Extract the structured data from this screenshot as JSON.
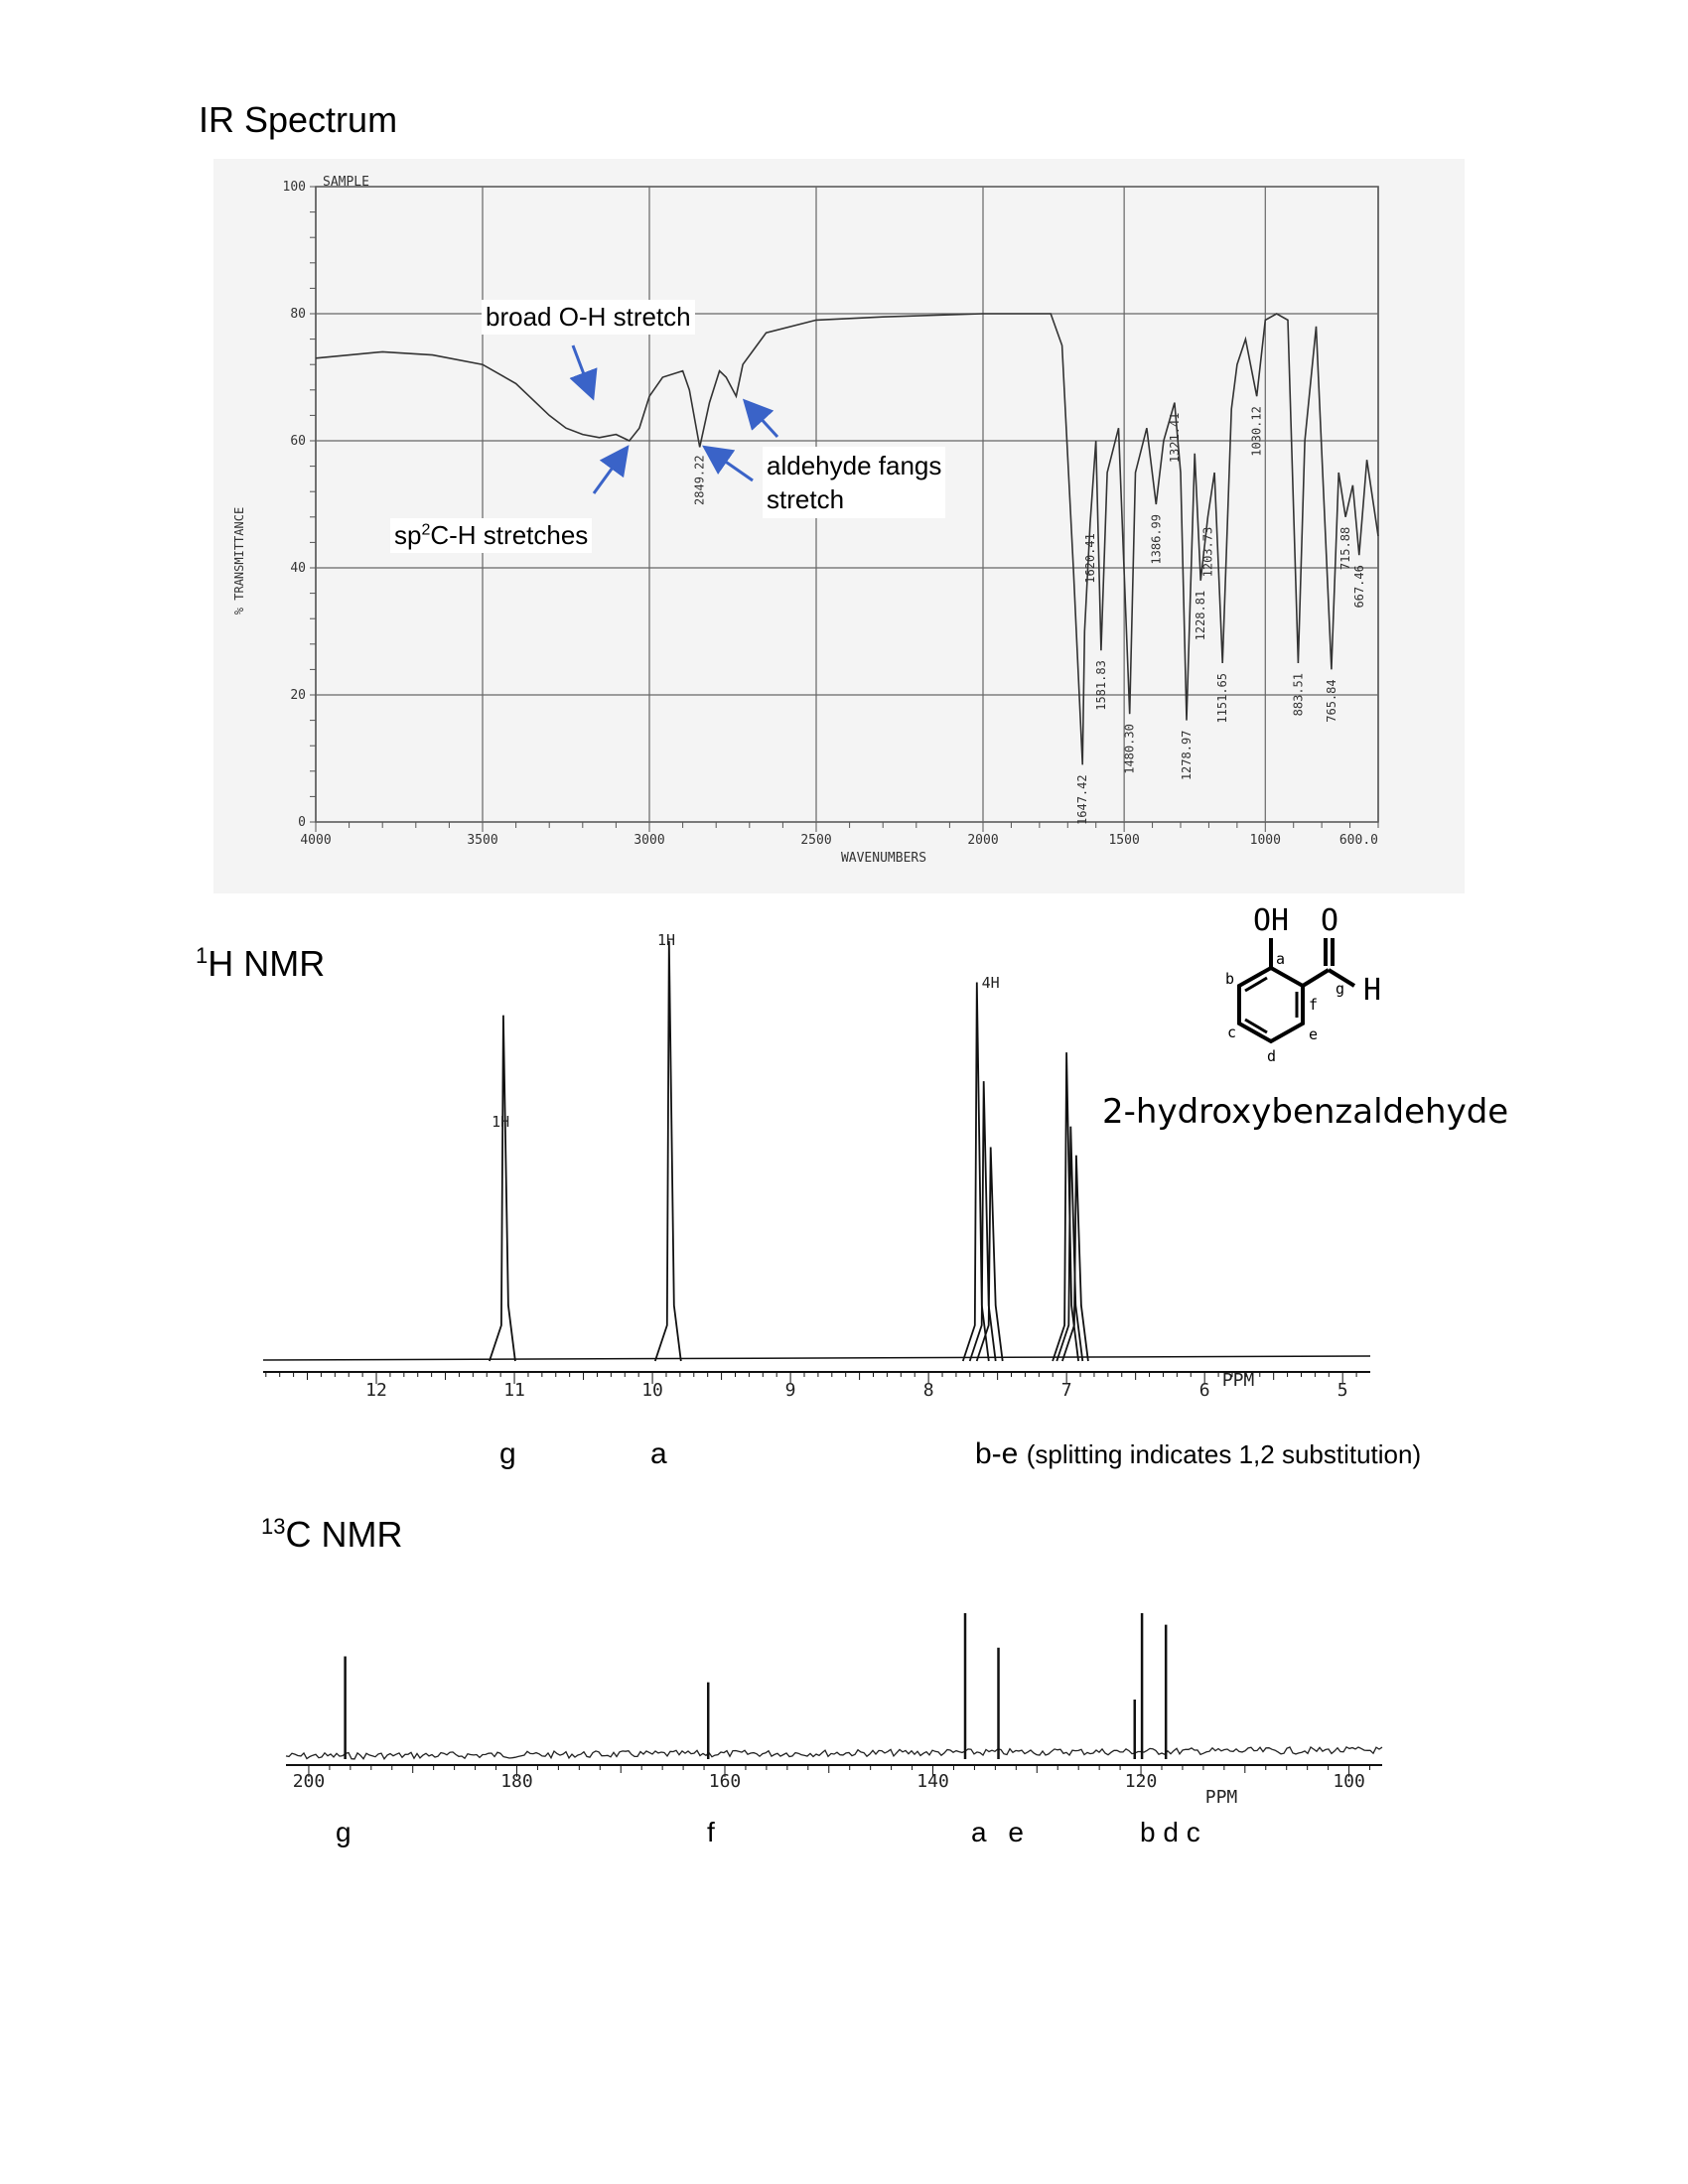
{
  "colors": {
    "annotation_arrow": "#3a63c8",
    "trace": "#333333",
    "grid": "#555555",
    "scan_bg": "#f4f4f4"
  },
  "headings": {
    "ir": "IR Spectrum",
    "h_nmr_sup": "1",
    "h_nmr": "H NMR",
    "c_nmr_sup": "13",
    "c_nmr": "C NMR"
  },
  "compound": {
    "name": "2-hydroxybenzaldehyde",
    "oh": "OH",
    "o": "O",
    "h": "H",
    "atom_labels": [
      "a",
      "b",
      "c",
      "d",
      "e",
      "f",
      "g"
    ]
  },
  "chart_data": [
    {
      "type": "line",
      "name": "ir",
      "sample_label": "SAMPLE",
      "xlabel": "WAVENUMBERS",
      "ylabel": "% TRANSMITTANCE",
      "xlim": [
        4000,
        600
      ],
      "ylim": [
        0,
        100
      ],
      "x_ticks": [
        "4000",
        "3500",
        "3000",
        "2500",
        "2000",
        "1500",
        "1000",
        "600.0"
      ],
      "y_ticks": [
        "100",
        "80",
        "60",
        "40",
        "20",
        "0"
      ],
      "grid": true,
      "trace": [
        [
          4000,
          73
        ],
        [
          3800,
          74
        ],
        [
          3650,
          73.5
        ],
        [
          3500,
          72
        ],
        [
          3400,
          69
        ],
        [
          3300,
          64
        ],
        [
          3250,
          62
        ],
        [
          3200,
          61
        ],
        [
          3150,
          60.5
        ],
        [
          3100,
          61
        ],
        [
          3060,
          60
        ],
        [
          3030,
          62
        ],
        [
          3000,
          67
        ],
        [
          2960,
          70
        ],
        [
          2900,
          71
        ],
        [
          2880,
          68
        ],
        [
          2849.22,
          59
        ],
        [
          2820,
          66
        ],
        [
          2790,
          71
        ],
        [
          2770,
          70
        ],
        [
          2740,
          67
        ],
        [
          2720,
          72
        ],
        [
          2650,
          77
        ],
        [
          2500,
          79
        ],
        [
          2300,
          79.5
        ],
        [
          2000,
          80
        ],
        [
          1760,
          80
        ],
        [
          1720,
          75
        ],
        [
          1680,
          40
        ],
        [
          1647.42,
          9
        ],
        [
          1640,
          30
        ],
        [
          1620.41,
          47
        ],
        [
          1600,
          60
        ],
        [
          1581.83,
          27
        ],
        [
          1560,
          55
        ],
        [
          1520,
          62
        ],
        [
          1480.3,
          17
        ],
        [
          1460,
          55
        ],
        [
          1420,
          62
        ],
        [
          1386.99,
          50
        ],
        [
          1360,
          60
        ],
        [
          1321.41,
          66
        ],
        [
          1300,
          55
        ],
        [
          1278.97,
          16
        ],
        [
          1250,
          58
        ],
        [
          1228.81,
          38
        ],
        [
          1203.73,
          48
        ],
        [
          1180,
          55
        ],
        [
          1151.65,
          25
        ],
        [
          1120,
          65
        ],
        [
          1100,
          72
        ],
        [
          1070,
          76
        ],
        [
          1030.12,
          67
        ],
        [
          1000,
          79
        ],
        [
          960,
          80
        ],
        [
          920,
          79
        ],
        [
          883.51,
          25
        ],
        [
          860,
          60
        ],
        [
          820,
          78
        ],
        [
          765.84,
          24
        ],
        [
          740,
          55
        ],
        [
          715.88,
          48
        ],
        [
          690,
          53
        ],
        [
          667.46,
          42
        ],
        [
          640,
          57
        ],
        [
          600,
          45
        ]
      ],
      "peak_labels": [
        "2849.22",
        "1647.42",
        "1620.41",
        "1581.83",
        "1480.30",
        "1386.99",
        "1321.41",
        "1278.97",
        "1228.81",
        "1203.73",
        "1151.65",
        "1030.12",
        "883.51",
        "765.84",
        "715.88",
        "667.46"
      ],
      "annotations": [
        {
          "text": "broad O-H stretch"
        },
        {
          "text_pre": "sp",
          "text_sup": "2",
          "text_post": "C-H stretches"
        },
        {
          "text": "aldehyde fangs\nstretch"
        }
      ]
    },
    {
      "type": "line",
      "name": "1h_nmr",
      "xlabel": "PPM",
      "xlim": [
        13,
        4.8
      ],
      "x_ticks": [
        "12",
        "11",
        "10",
        "9",
        "8",
        "7",
        "6",
        "5"
      ],
      "integrations": [
        {
          "ppm": 11.1,
          "label": "1H"
        },
        {
          "ppm": 9.9,
          "label": "1H"
        },
        {
          "ppm": 7.55,
          "label": "4H"
        }
      ],
      "peaks": [
        {
          "ppm": 11.08,
          "height": 0.82
        },
        {
          "ppm": 9.88,
          "height": 1.0
        },
        {
          "ppm": 7.65,
          "height": 0.9
        },
        {
          "ppm": 7.6,
          "height": 0.66
        },
        {
          "ppm": 7.55,
          "height": 0.5
        },
        {
          "ppm": 7.0,
          "height": 0.73
        },
        {
          "ppm": 6.97,
          "height": 0.55
        },
        {
          "ppm": 6.93,
          "height": 0.48
        }
      ],
      "assignments": [
        {
          "label": "g"
        },
        {
          "label": "a"
        },
        {
          "label": "b-e",
          "note": "(splitting indicates 1,2 substitution)"
        }
      ]
    },
    {
      "type": "line",
      "name": "13c_nmr",
      "xlabel": "PPM",
      "xlim": [
        202,
        97
      ],
      "x_ticks": [
        "200",
        "180",
        "160",
        "140",
        "120",
        "100"
      ],
      "peaks": [
        {
          "ppm": 196.5,
          "height": 0.7
        },
        {
          "ppm": 161.6,
          "height": 0.52
        },
        {
          "ppm": 136.9,
          "height": 1.0
        },
        {
          "ppm": 133.7,
          "height": 0.76
        },
        {
          "ppm": 120.6,
          "height": 0.4
        },
        {
          "ppm": 119.9,
          "height": 1.0
        },
        {
          "ppm": 117.6,
          "height": 0.92
        }
      ],
      "assignments": [
        {
          "label": "g"
        },
        {
          "label": "f"
        },
        {
          "label": "a e"
        },
        {
          "label": "b d c"
        }
      ]
    }
  ]
}
